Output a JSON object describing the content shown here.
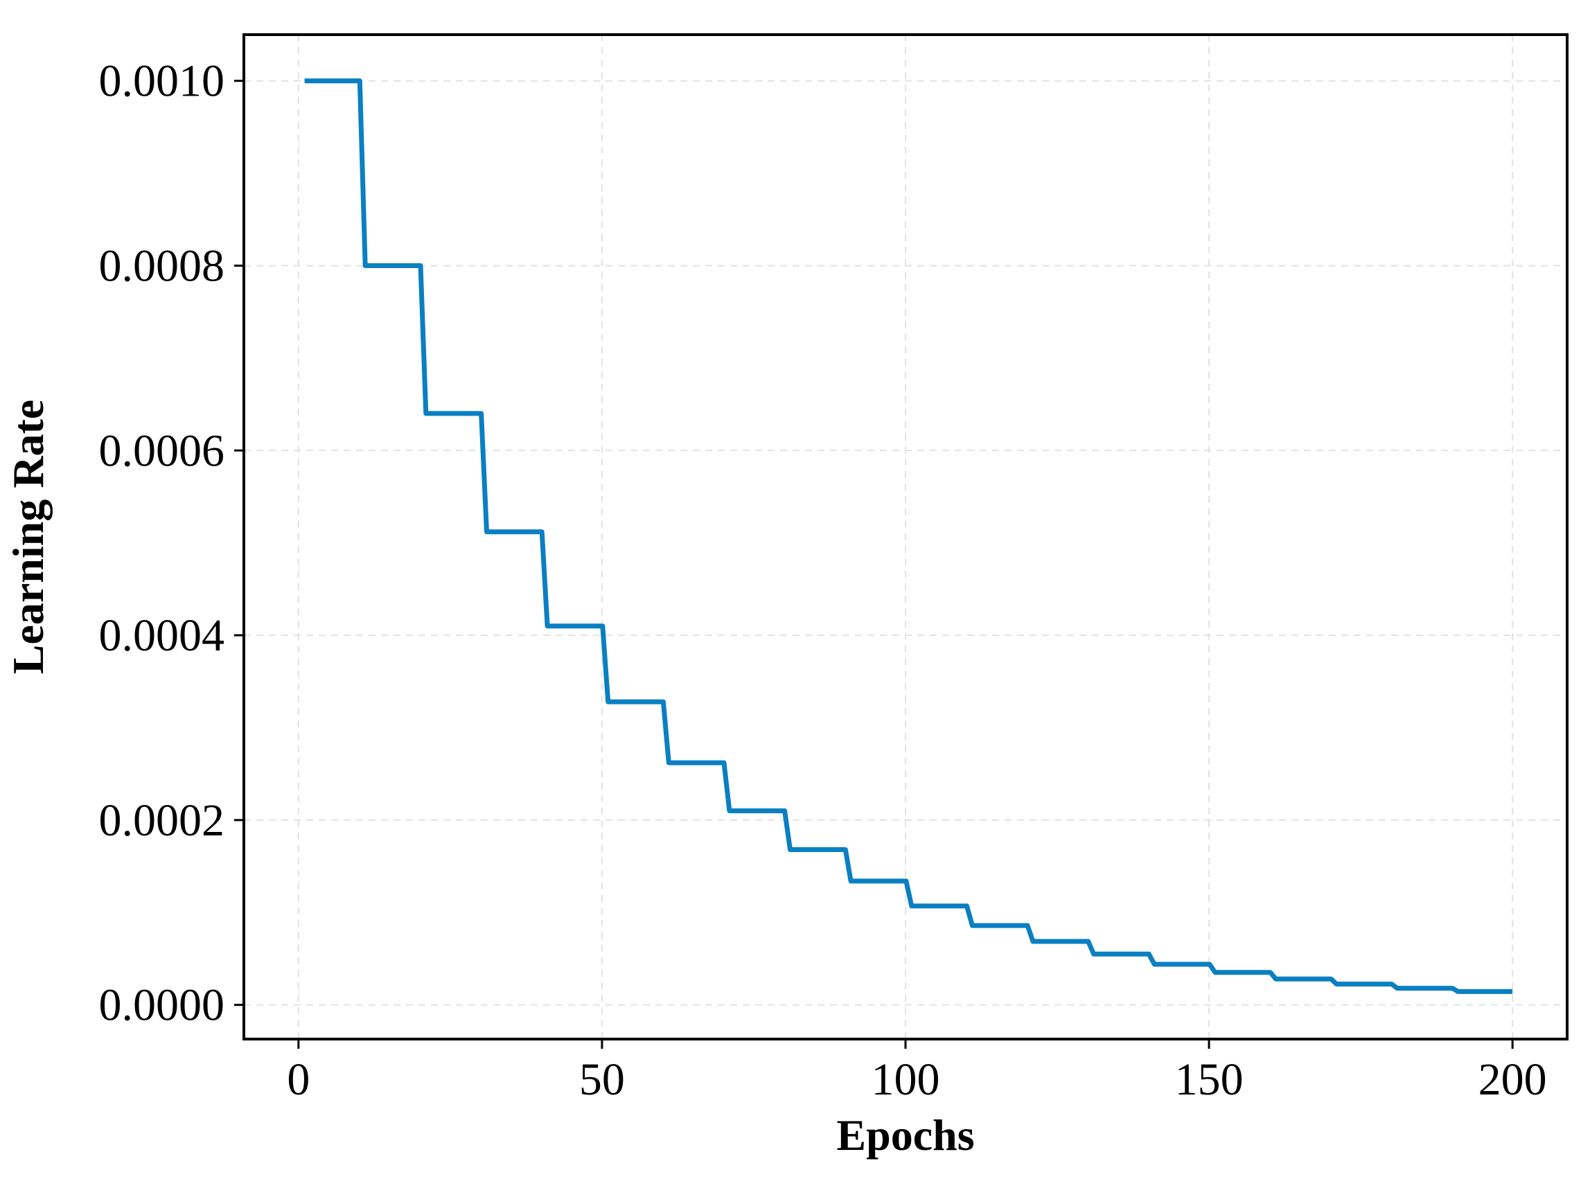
{
  "chart_data": {
    "type": "line",
    "xlabel": "Epochs",
    "ylabel": "Learning Rate",
    "xlim": [
      -9,
      209
    ],
    "ylim": [
      -3.7e-05,
      0.00105
    ],
    "xticks": [
      0,
      50,
      100,
      150,
      200
    ],
    "xtick_labels": [
      "0",
      "50",
      "100",
      "150",
      "200"
    ],
    "yticks": [
      0.0,
      0.0002,
      0.0004,
      0.0006,
      0.0008,
      0.001
    ],
    "ytick_labels": [
      "0.0000",
      "0.0002",
      "0.0004",
      "0.0006",
      "0.0008",
      "0.0010"
    ],
    "grid": true,
    "legend": "none",
    "series": [
      {
        "color": "#0a7fc2",
        "step": "post",
        "x": [
          1,
          11,
          21,
          31,
          41,
          51,
          61,
          71,
          81,
          91,
          101,
          111,
          121,
          131,
          141,
          151,
          161,
          171,
          181,
          191,
          200
        ],
        "y": [
          0.001,
          0.0008,
          0.00064,
          0.000512,
          0.00041,
          0.000328,
          0.000262,
          0.00021,
          0.000168,
          0.000134,
          0.000107,
          8.59e-05,
          6.87e-05,
          5.5e-05,
          4.4e-05,
          3.52e-05,
          2.81e-05,
          2.25e-05,
          1.8e-05,
          1.44e-05,
          1.44e-05
        ]
      }
    ]
  }
}
